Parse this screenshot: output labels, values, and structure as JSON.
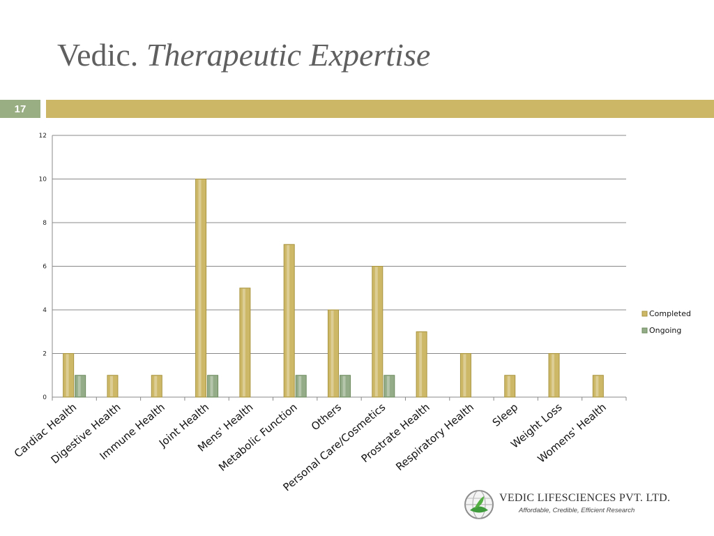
{
  "slide": {
    "title_plain": "Vedic.",
    "title_italic": "Therapeutic Expertise",
    "number": "17"
  },
  "colors": {
    "completed": "#cdb868",
    "ongoing": "#94ad88",
    "accent_bar": "#cbb765",
    "number_box": "#9aae84"
  },
  "chart_data": {
    "type": "bar",
    "categories": [
      "Cardiac Health",
      "Digestive Health",
      "Immune Health",
      "Joint Health",
      "Mens' Health",
      "Metabolic Function",
      "Others",
      "Personal Care/Cosmetics",
      "Prostrate Health",
      "Respiratory Health",
      "Sleep",
      "Weight Loss",
      "Womens' Health"
    ],
    "series": [
      {
        "name": "Completed",
        "values": [
          2,
          1,
          1,
          10,
          5,
          7,
          4,
          6,
          3,
          2,
          1,
          2,
          1
        ]
      },
      {
        "name": "Ongoing",
        "values": [
          1,
          0,
          0,
          1,
          0,
          1,
          1,
          1,
          0,
          0,
          0,
          0,
          0
        ]
      }
    ],
    "ylim": [
      0,
      12
    ],
    "yticks": [
      "0",
      "2",
      "4",
      "6",
      "8",
      "10",
      "12"
    ],
    "grid": true,
    "legend": "right"
  },
  "logo": {
    "company": "VEDIC LIFESCIENCES PVT. LTD.",
    "tagline": "Affordable, Credible, Efficient Research"
  }
}
